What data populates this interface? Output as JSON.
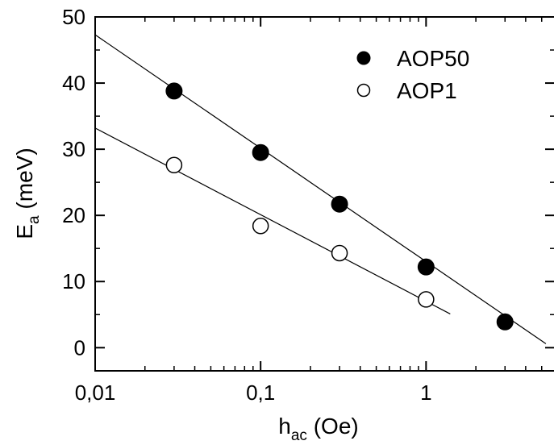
{
  "chart_data": {
    "type": "scatter",
    "x_scale": "log",
    "xlim": [
      0.01,
      6
    ],
    "ylim": [
      -3.5,
      50
    ],
    "grid": false,
    "legend_position": "top-right",
    "xlabel": {
      "main": "h",
      "sub": "ac",
      "rest": " (Oe)"
    },
    "ylabel": {
      "main": "E",
      "sub": "a",
      "rest": " (meV)"
    },
    "x_ticks": [
      {
        "value": 0.01,
        "label": "0,01"
      },
      {
        "value": 0.1,
        "label": "0,1"
      },
      {
        "value": 1,
        "label": "1"
      }
    ],
    "y_ticks": [
      {
        "value": 0,
        "label": "0"
      },
      {
        "value": 10,
        "label": "10"
      },
      {
        "value": 20,
        "label": "20"
      },
      {
        "value": 30,
        "label": "30"
      },
      {
        "value": 40,
        "label": "40"
      },
      {
        "value": 50,
        "label": "50"
      }
    ],
    "series": [
      {
        "name": "AOP50",
        "marker": "filled-circle",
        "color": "#000000",
        "points": [
          {
            "x": 0.03,
            "y": 38.8
          },
          {
            "x": 0.1,
            "y": 29.5
          },
          {
            "x": 0.3,
            "y": 21.7
          },
          {
            "x": 1,
            "y": 12.2
          },
          {
            "x": 3,
            "y": 3.9
          }
        ],
        "fit_line": [
          {
            "x": 0.01,
            "y": 47.3
          },
          {
            "x": 5.3,
            "y": 0.6
          }
        ]
      },
      {
        "name": "AOP1",
        "marker": "open-circle",
        "color": "#000000",
        "points": [
          {
            "x": 0.03,
            "y": 27.6
          },
          {
            "x": 0.1,
            "y": 18.4
          },
          {
            "x": 0.3,
            "y": 14.3
          },
          {
            "x": 1,
            "y": 7.3
          }
        ],
        "fit_line": [
          {
            "x": 0.01,
            "y": 33.2
          },
          {
            "x": 1.4,
            "y": 5.1
          }
        ]
      }
    ]
  }
}
